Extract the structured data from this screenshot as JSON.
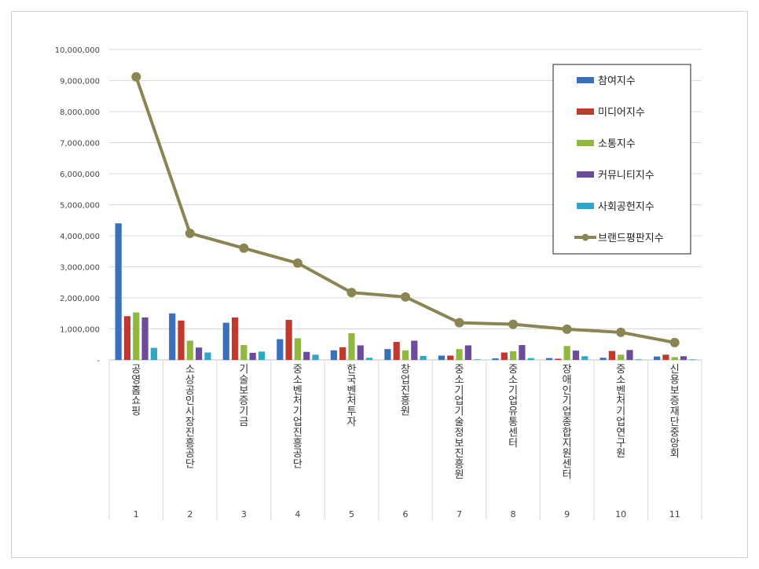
{
  "chart_data": {
    "type": "bar",
    "categories": [
      "공영홈쇼핑",
      "소상공인시장진흥공단",
      "기술보증기금",
      "중소벤처기업진흥공단",
      "한국벤처투자",
      "창업진흥원",
      "중소기업기술정보진흥원",
      "중소기업유통센터",
      "장애인기업종합지원센터",
      "중소벤처기업연구원",
      "신용보증재단중앙회"
    ],
    "ranks": [
      "1",
      "2",
      "3",
      "4",
      "5",
      "6",
      "7",
      "8",
      "9",
      "10",
      "11"
    ],
    "ylim": [
      0,
      10000000
    ],
    "yticks": [
      0,
      1000000,
      2000000,
      3000000,
      4000000,
      5000000,
      6000000,
      7000000,
      8000000,
      9000000,
      10000000
    ],
    "ytick_labels": [
      "-",
      "1,000,000",
      "2,000,000",
      "3,000,000",
      "4,000,000",
      "5,000,000",
      "6,000,000",
      "7,000,000",
      "8,000,000",
      "9,000,000",
      "10,000,000"
    ],
    "grid": true,
    "legend_position": "top-right",
    "series": [
      {
        "name": "참여지수",
        "kind": "bar",
        "color": "#3a6fbe",
        "values": [
          4400000,
          1500000,
          1200000,
          670000,
          310000,
          350000,
          140000,
          50000,
          60000,
          70000,
          110000
        ]
      },
      {
        "name": "미디어지수",
        "kind": "bar",
        "color": "#c0392f",
        "values": [
          1410000,
          1270000,
          1370000,
          1290000,
          410000,
          580000,
          140000,
          240000,
          40000,
          290000,
          170000
        ]
      },
      {
        "name": "소통지수",
        "kind": "bar",
        "color": "#8fb93e",
        "values": [
          1530000,
          620000,
          480000,
          700000,
          860000,
          310000,
          350000,
          280000,
          450000,
          170000,
          90000
        ]
      },
      {
        "name": "커뮤니티지수",
        "kind": "bar",
        "color": "#6b4c9a",
        "values": [
          1370000,
          400000,
          230000,
          260000,
          470000,
          620000,
          470000,
          480000,
          300000,
          320000,
          120000
        ]
      },
      {
        "name": "사회공헌지수",
        "kind": "bar",
        "color": "#2fa8c8",
        "values": [
          390000,
          240000,
          270000,
          170000,
          70000,
          130000,
          20000,
          60000,
          120000,
          20000,
          20000
        ]
      },
      {
        "name": "브랜드평판지수",
        "kind": "line",
        "color": "#8b8553",
        "values": [
          9120000,
          4080000,
          3600000,
          3120000,
          2170000,
          2030000,
          1200000,
          1150000,
          990000,
          890000,
          560000
        ]
      }
    ]
  }
}
